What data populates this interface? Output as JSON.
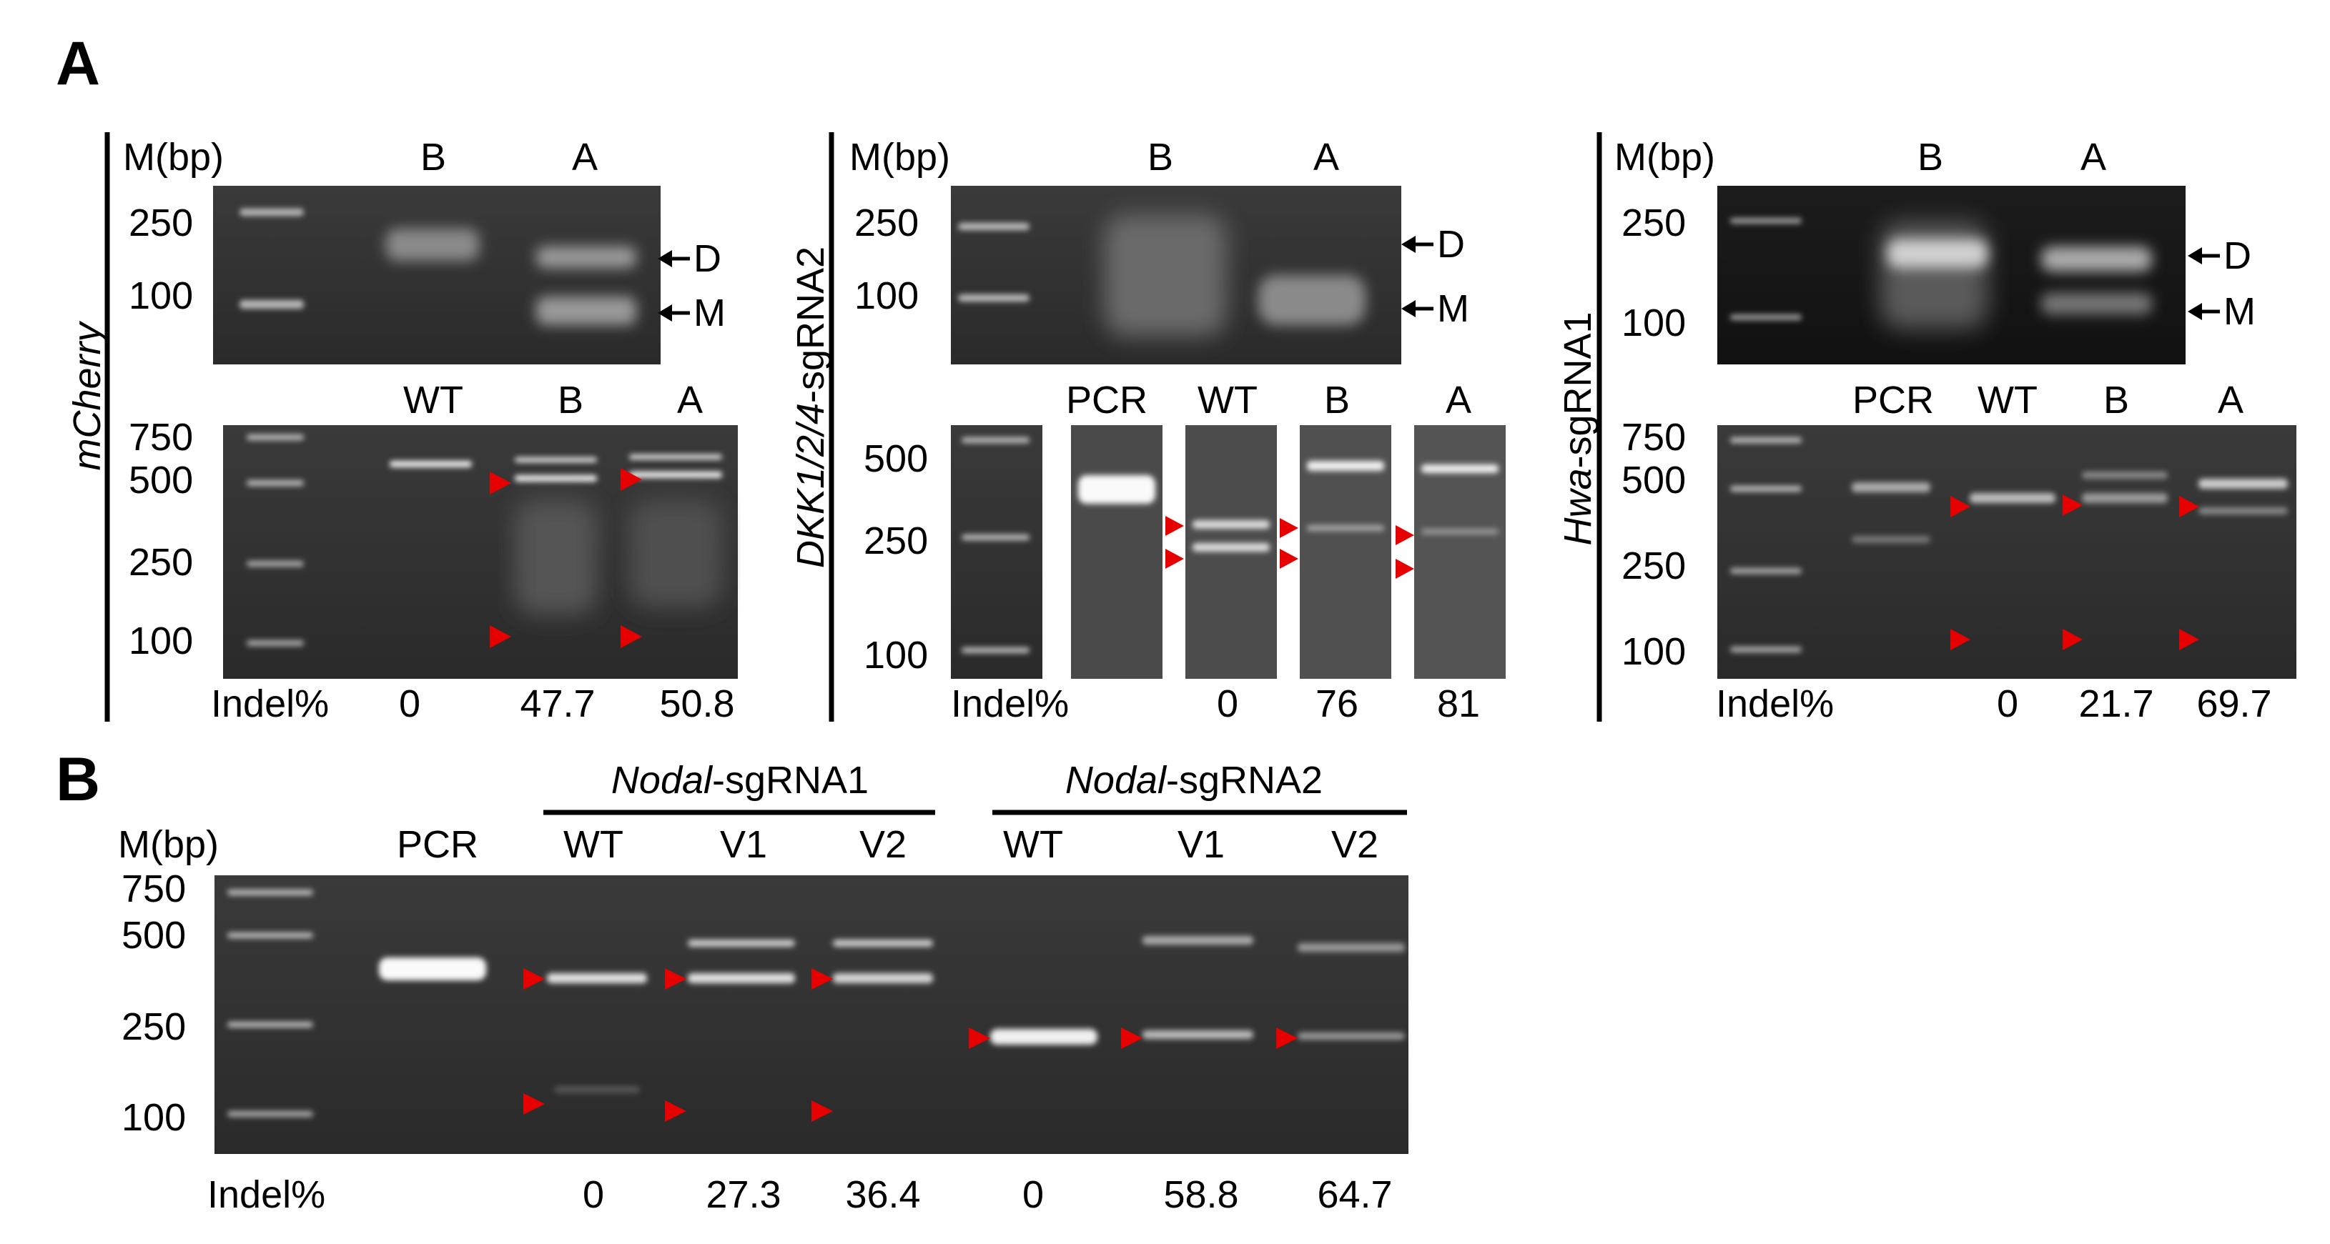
{
  "panel_a": {
    "label": "A",
    "mcherry": {
      "gene": "mCherry",
      "top": {
        "m_label": "M(bp)",
        "lanes": [
          "B",
          "A"
        ],
        "markers": [
          "250",
          "100"
        ],
        "arrow_d": "D",
        "arrow_m": "M"
      },
      "bottom": {
        "lanes": [
          "WT",
          "B",
          "A"
        ],
        "markers": [
          "750",
          "500",
          "250",
          "100"
        ],
        "indel_label": "Indel%",
        "indel_values": [
          "0",
          "47.7",
          "50.8"
        ]
      }
    },
    "dkk": {
      "gene_italic": "DKK1/2/4",
      "gene_plain": "-sgRNA2",
      "top": {
        "m_label": "M(bp)",
        "lanes": [
          "B",
          "A"
        ],
        "markers": [
          "250",
          "100"
        ],
        "arrow_d": "D",
        "arrow_m": "M"
      },
      "bottom": {
        "lanes": [
          "PCR",
          "WT",
          "B",
          "A"
        ],
        "markers": [
          "500",
          "250",
          "100"
        ],
        "indel_label": "Indel%",
        "indel_values": [
          "0",
          "76",
          "81"
        ]
      }
    },
    "hwa": {
      "gene_italic": "Hwa",
      "gene_plain": "-sgRNA1",
      "top": {
        "m_label": "M(bp)",
        "lanes": [
          "B",
          "A"
        ],
        "markers": [
          "250",
          "100"
        ],
        "arrow_d": "D",
        "arrow_m": "M"
      },
      "bottom": {
        "lanes": [
          "PCR",
          "WT",
          "B",
          "A"
        ],
        "markers": [
          "750",
          "500",
          "250",
          "100"
        ],
        "indel_label": "Indel%",
        "indel_values": [
          "0",
          "21.7",
          "69.7"
        ]
      }
    }
  },
  "panel_b": {
    "label": "B",
    "m_label": "M(bp)",
    "pcr_label": "PCR",
    "group1": {
      "gene_italic": "Nodal",
      "gene_plain": "-sgRNA1",
      "lanes": [
        "WT",
        "V1",
        "V2"
      ],
      "indel_values": [
        "0",
        "27.3",
        "36.4"
      ]
    },
    "group2": {
      "gene_italic": "Nodal",
      "gene_plain": "-sgRNA2",
      "lanes": [
        "WT",
        "V1",
        "V2"
      ],
      "indel_values": [
        "0",
        "58.8",
        "64.7"
      ]
    },
    "markers": [
      "750",
      "500",
      "250",
      "100"
    ],
    "indel_label": "Indel%"
  },
  "colors": {
    "arrowhead": "#e60000",
    "gel_background": "#2b2b2b",
    "band": "#e6e6e6"
  }
}
